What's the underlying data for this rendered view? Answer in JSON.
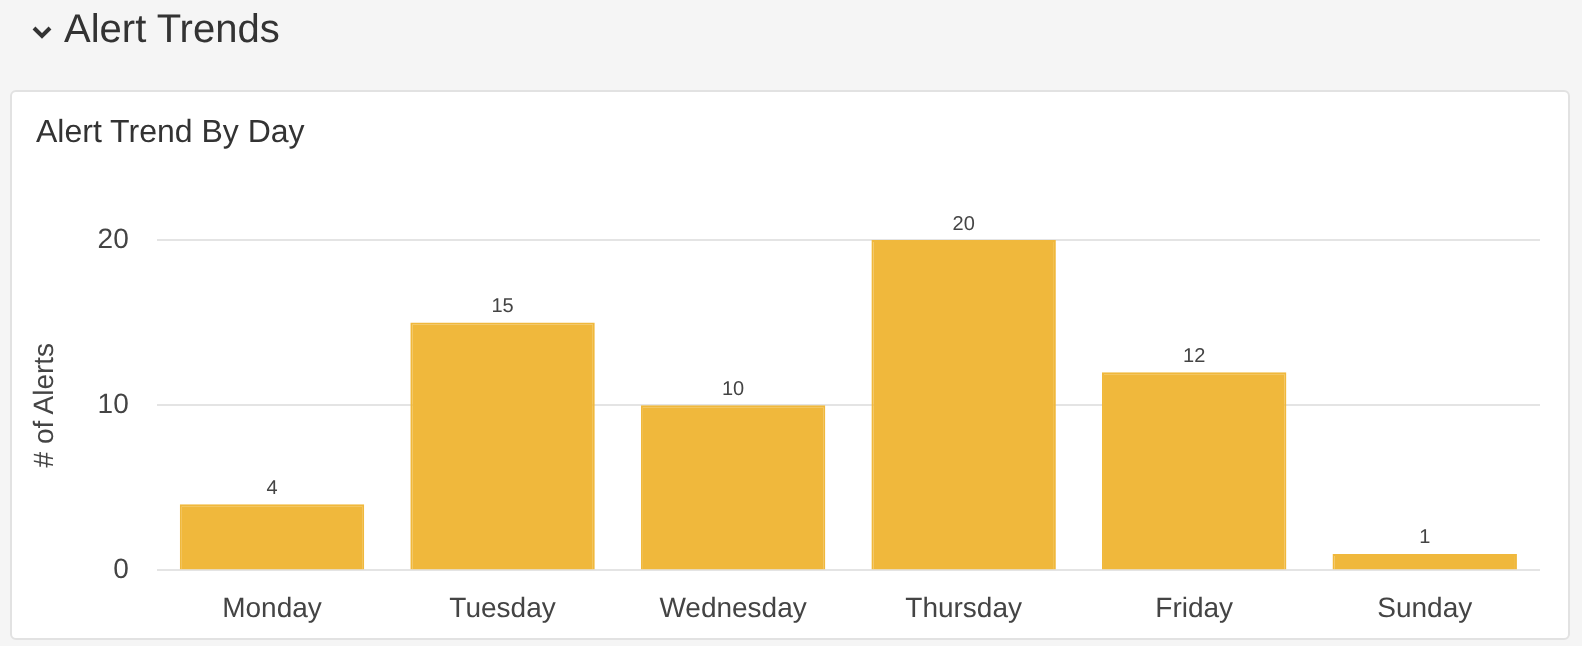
{
  "chart_data": {
    "type": "bar",
    "title": "Alert Trends",
    "subtitle": "Alert Trend By Day",
    "ylabel": "# of Alerts",
    "categories": [
      "Monday",
      "Tuesday",
      "Wednesday",
      "Thursday",
      "Friday",
      "Sunday"
    ],
    "values": [
      4,
      15,
      10,
      20,
      12,
      1
    ],
    "color": "#f0b83c",
    "ylim": [
      0,
      20
    ],
    "yticks": [
      0,
      10,
      20
    ],
    "grid": "y",
    "data_labels": true
  }
}
